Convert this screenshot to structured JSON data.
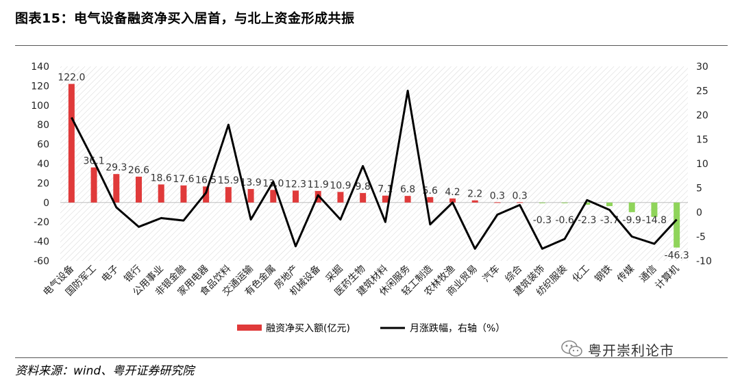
{
  "title": "图表15：电气设备融资净买入居首，与北上资金形成共振",
  "source": "资料来源：wind、粤开证券研究院",
  "watermark": "粤开崇利论市",
  "chart_data": {
    "type": "bar+line",
    "categories": [
      "电气设备",
      "国防军工",
      "电子",
      "银行",
      "公用事业",
      "非银金融",
      "家用电器",
      "食品饮料",
      "交通运输",
      "有色金属",
      "房地产",
      "机械设备",
      "采掘",
      "医药生物",
      "建筑材料",
      "休闲服务",
      "轻工制造",
      "农林牧渔",
      "商业贸易",
      "汽车",
      "综合",
      "建筑装饰",
      "纺织服装",
      "化工",
      "钢铁",
      "传媒",
      "通信",
      "计算机"
    ],
    "series": [
      {
        "name": "融资净买入额(亿元)",
        "axis": "left",
        "type": "bar",
        "values": [
          122.0,
          36.1,
          29.3,
          26.6,
          18.6,
          17.6,
          16.5,
          15.9,
          13.9,
          13.0,
          12.3,
          11.9,
          10.9,
          9.8,
          7.1,
          6.8,
          5.6,
          4.2,
          2.2,
          0.3,
          0.3,
          -0.3,
          -0.6,
          -2.3,
          -3.7,
          -9.9,
          -14.8,
          -46.3
        ],
        "labels": [
          "122.0",
          "36.1",
          "29.3",
          "26.6",
          "18.6",
          "17.6",
          "16.5",
          "15.9",
          "13.9",
          "13.0",
          "12.3",
          "11.9",
          "10.9",
          "9.8",
          "7.1",
          "6.8",
          "5.6",
          "4.2",
          "2.2",
          "0.3",
          "0.3",
          "-0.3",
          "-0.6",
          "-2.3",
          "-3.7",
          "-9.9",
          "-14.8",
          "-46.3"
        ],
        "color_positive": "#e03a3a",
        "color_negative": "#8fd45a"
      },
      {
        "name": "月涨跌幅，右轴（%）",
        "axis": "right",
        "type": "line",
        "values": [
          19.5,
          10.5,
          1.0,
          -3.0,
          -1.2,
          -1.7,
          4.0,
          18.0,
          -1.5,
          6.3,
          -7.0,
          3.5,
          -1.5,
          9.5,
          -2.0,
          25.0,
          -2.5,
          2.0,
          -7.5,
          -0.5,
          1.5,
          -7.5,
          -5.5,
          2.5,
          0.5,
          -5.0,
          -6.5,
          -1.5
        ],
        "color": "#000000"
      }
    ],
    "left_axis": {
      "min": -60,
      "max": 140,
      "step": 20,
      "ticks": [
        "140",
        "120",
        "100",
        "80",
        "60",
        "40",
        "20",
        "0",
        "-20",
        "-40",
        "-60"
      ]
    },
    "right_axis": {
      "min": -10,
      "max": 30,
      "step": 5,
      "ticks": [
        "30",
        "25",
        "20",
        "15",
        "10",
        "5",
        "0",
        "-5",
        "-10"
      ]
    },
    "legend": {
      "position": "bottom",
      "bar_label": "融资净买入额(亿元)",
      "line_label": "月涨跌幅，右轴（%）"
    },
    "grid": false,
    "hatched_background": true
  }
}
